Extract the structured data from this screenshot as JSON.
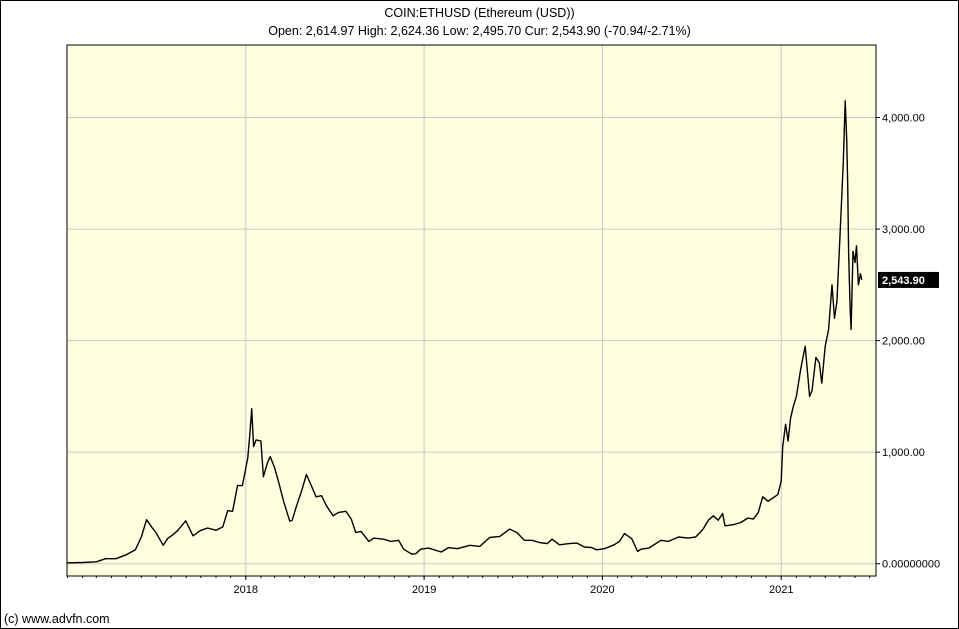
{
  "title": "COIN:ETHUSD (Ethereum (USD))",
  "stats": "Open: 2,614.97 High: 2,624.36 Low: 2,495.70 Cur: 2,543.90 (-70.94/-2.71%)",
  "copyright": "(c) www.advfn.com",
  "colors": {
    "plot_background": "#ffffe0",
    "grid": "#c8c8c8",
    "line": "#000000",
    "current_label_bg": "#000000",
    "current_label_text": "#ffffff"
  },
  "chart_data": {
    "type": "line",
    "grid": true,
    "xlim": [
      "2016-12-31",
      "2021-07-14"
    ],
    "ylim": [
      -110,
      4650
    ],
    "x_ticks": [
      {
        "date": "2018-01-01",
        "label": "2018"
      },
      {
        "date": "2019-01-01",
        "label": "2019"
      },
      {
        "date": "2020-01-01",
        "label": "2020"
      },
      {
        "date": "2021-01-01",
        "label": "2021"
      }
    ],
    "y_ticks": [
      {
        "value": 0,
        "label": "0.00000000"
      },
      {
        "value": 1000,
        "label": "1,000.00"
      },
      {
        "value": 2000,
        "label": "2,000.00"
      },
      {
        "value": 3000,
        "label": "3,000.00"
      },
      {
        "value": 4000,
        "label": "4,000.00"
      }
    ],
    "current": {
      "value": 2543.9,
      "label": "2,543.90"
    },
    "series": [
      {
        "points": [
          [
            "2016-12-31",
            8
          ],
          [
            "2017-02-01",
            11
          ],
          [
            "2017-03-01",
            17
          ],
          [
            "2017-03-20",
            45
          ],
          [
            "2017-04-10",
            45
          ],
          [
            "2017-05-01",
            80
          ],
          [
            "2017-05-20",
            125
          ],
          [
            "2017-06-01",
            240
          ],
          [
            "2017-06-12",
            395
          ],
          [
            "2017-06-22",
            330
          ],
          [
            "2017-07-01",
            280
          ],
          [
            "2017-07-16",
            165
          ],
          [
            "2017-07-25",
            225
          ],
          [
            "2017-08-05",
            260
          ],
          [
            "2017-08-15",
            300
          ],
          [
            "2017-08-31",
            385
          ],
          [
            "2017-09-15",
            250
          ],
          [
            "2017-10-01",
            300
          ],
          [
            "2017-10-15",
            320
          ],
          [
            "2017-11-01",
            300
          ],
          [
            "2017-11-15",
            330
          ],
          [
            "2017-11-25",
            475
          ],
          [
            "2017-12-05",
            470
          ],
          [
            "2017-12-15",
            700
          ],
          [
            "2017-12-25",
            700
          ],
          [
            "2018-01-05",
            950
          ],
          [
            "2018-01-10",
            1200
          ],
          [
            "2018-01-13",
            1390
          ],
          [
            "2018-01-17",
            1050
          ],
          [
            "2018-01-22",
            1110
          ],
          [
            "2018-02-01",
            1100
          ],
          [
            "2018-02-06",
            780
          ],
          [
            "2018-02-14",
            900
          ],
          [
            "2018-02-20",
            960
          ],
          [
            "2018-03-01",
            860
          ],
          [
            "2018-03-10",
            720
          ],
          [
            "2018-03-20",
            550
          ],
          [
            "2018-04-01",
            380
          ],
          [
            "2018-04-06",
            390
          ],
          [
            "2018-04-15",
            520
          ],
          [
            "2018-04-25",
            650
          ],
          [
            "2018-05-05",
            800
          ],
          [
            "2018-05-15",
            700
          ],
          [
            "2018-05-25",
            600
          ],
          [
            "2018-06-05",
            610
          ],
          [
            "2018-06-15",
            520
          ],
          [
            "2018-06-29",
            430
          ],
          [
            "2018-07-10",
            460
          ],
          [
            "2018-07-25",
            470
          ],
          [
            "2018-08-05",
            400
          ],
          [
            "2018-08-14",
            280
          ],
          [
            "2018-08-25",
            290
          ],
          [
            "2018-09-10",
            200
          ],
          [
            "2018-09-20",
            230
          ],
          [
            "2018-10-10",
            220
          ],
          [
            "2018-10-25",
            200
          ],
          [
            "2018-11-10",
            210
          ],
          [
            "2018-11-20",
            130
          ],
          [
            "2018-12-07",
            85
          ],
          [
            "2018-12-15",
            90
          ],
          [
            "2018-12-25",
            130
          ],
          [
            "2019-01-10",
            140
          ],
          [
            "2019-02-05",
            105
          ],
          [
            "2019-02-20",
            145
          ],
          [
            "2019-03-10",
            135
          ],
          [
            "2019-04-05",
            165
          ],
          [
            "2019-04-25",
            155
          ],
          [
            "2019-05-15",
            235
          ],
          [
            "2019-06-05",
            245
          ],
          [
            "2019-06-25",
            310
          ],
          [
            "2019-07-10",
            280
          ],
          [
            "2019-07-25",
            210
          ],
          [
            "2019-08-10",
            210
          ],
          [
            "2019-08-25",
            190
          ],
          [
            "2019-09-10",
            180
          ],
          [
            "2019-09-20",
            220
          ],
          [
            "2019-10-05",
            170
          ],
          [
            "2019-10-25",
            180
          ],
          [
            "2019-11-10",
            185
          ],
          [
            "2019-11-25",
            150
          ],
          [
            "2019-12-10",
            145
          ],
          [
            "2019-12-20",
            125
          ],
          [
            "2020-01-05",
            135
          ],
          [
            "2020-01-25",
            170
          ],
          [
            "2020-02-05",
            200
          ],
          [
            "2020-02-15",
            270
          ],
          [
            "2020-03-01",
            225
          ],
          [
            "2020-03-13",
            110
          ],
          [
            "2020-03-20",
            130
          ],
          [
            "2020-04-05",
            140
          ],
          [
            "2020-04-30",
            210
          ],
          [
            "2020-05-15",
            200
          ],
          [
            "2020-06-05",
            240
          ],
          [
            "2020-06-25",
            230
          ],
          [
            "2020-07-10",
            240
          ],
          [
            "2020-07-25",
            310
          ],
          [
            "2020-08-05",
            390
          ],
          [
            "2020-08-15",
            430
          ],
          [
            "2020-08-25",
            390
          ],
          [
            "2020-09-03",
            450
          ],
          [
            "2020-09-08",
            340
          ],
          [
            "2020-09-25",
            350
          ],
          [
            "2020-10-10",
            370
          ],
          [
            "2020-10-25",
            410
          ],
          [
            "2020-11-05",
            400
          ],
          [
            "2020-11-15",
            460
          ],
          [
            "2020-11-24",
            600
          ],
          [
            "2020-12-05",
            560
          ],
          [
            "2020-12-15",
            590
          ],
          [
            "2020-12-25",
            620
          ],
          [
            "2021-01-01",
            740
          ],
          [
            "2021-01-04",
            1050
          ],
          [
            "2021-01-10",
            1250
          ],
          [
            "2021-01-15",
            1100
          ],
          [
            "2021-01-20",
            1300
          ],
          [
            "2021-01-25",
            1400
          ],
          [
            "2021-02-01",
            1500
          ],
          [
            "2021-02-10",
            1750
          ],
          [
            "2021-02-19",
            1950
          ],
          [
            "2021-02-28",
            1500
          ],
          [
            "2021-03-05",
            1550
          ],
          [
            "2021-03-13",
            1850
          ],
          [
            "2021-03-20",
            1800
          ],
          [
            "2021-03-25",
            1620
          ],
          [
            "2021-04-01",
            1950
          ],
          [
            "2021-04-08",
            2100
          ],
          [
            "2021-04-15",
            2500
          ],
          [
            "2021-04-20",
            2200
          ],
          [
            "2021-04-25",
            2350
          ],
          [
            "2021-05-01",
            2900
          ],
          [
            "2021-05-08",
            3600
          ],
          [
            "2021-05-12",
            4150
          ],
          [
            "2021-05-15",
            3800
          ],
          [
            "2021-05-17",
            3400
          ],
          [
            "2021-05-19",
            2800
          ],
          [
            "2021-05-22",
            2300
          ],
          [
            "2021-05-24",
            2100
          ],
          [
            "2021-05-28",
            2800
          ],
          [
            "2021-06-01",
            2700
          ],
          [
            "2021-06-04",
            2850
          ],
          [
            "2021-06-08",
            2500
          ],
          [
            "2021-06-12",
            2600
          ],
          [
            "2021-06-15",
            2543.9
          ]
        ]
      }
    ]
  }
}
